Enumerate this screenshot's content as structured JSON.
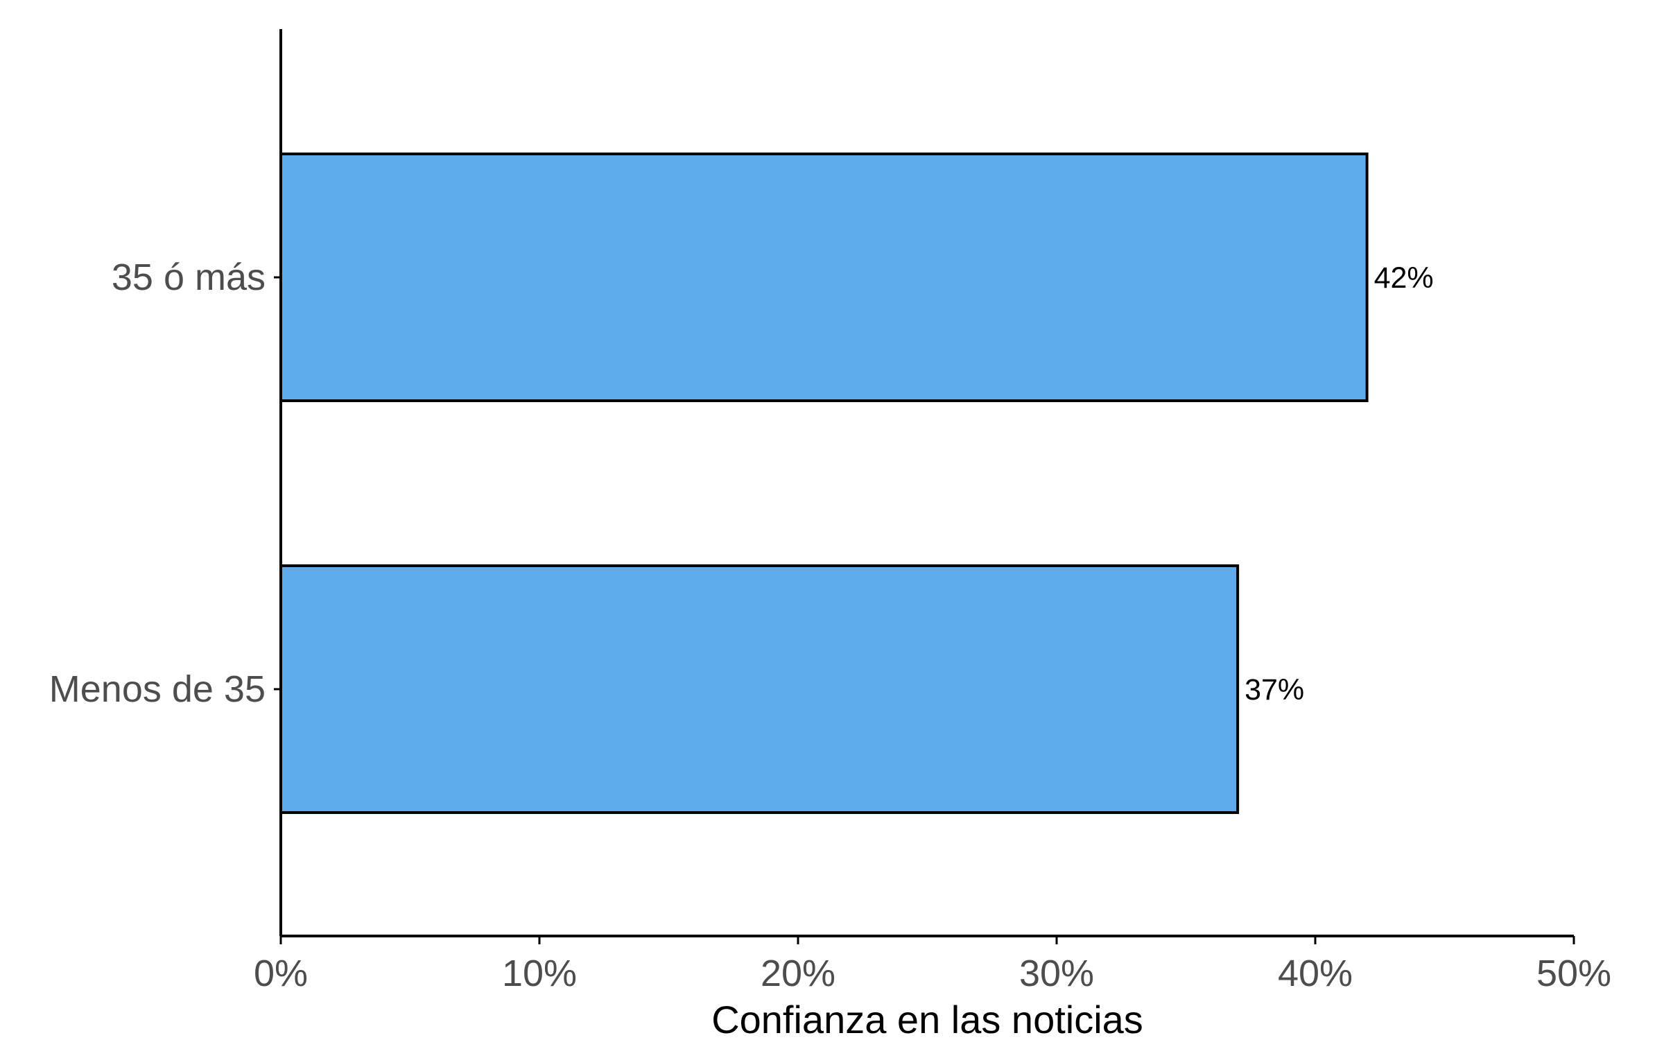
{
  "chart_data": {
    "type": "bar",
    "orientation": "horizontal",
    "categories": [
      "35 ó más",
      "Menos de 35"
    ],
    "values": [
      42,
      37
    ],
    "data_labels": [
      "42%",
      "37%"
    ],
    "xlabel": "Confianza en las noticias",
    "ylabel": "",
    "xlim": [
      0,
      50
    ],
    "xticks": [
      0,
      10,
      20,
      30,
      40,
      50
    ],
    "xtick_labels": [
      "0%",
      "10%",
      "20%",
      "30%",
      "40%",
      "50%"
    ],
    "grid": false,
    "legend": "none",
    "colors": {
      "bar_fill": "#5DABED",
      "bar_stroke": "#000000",
      "axis": "#000000"
    }
  }
}
